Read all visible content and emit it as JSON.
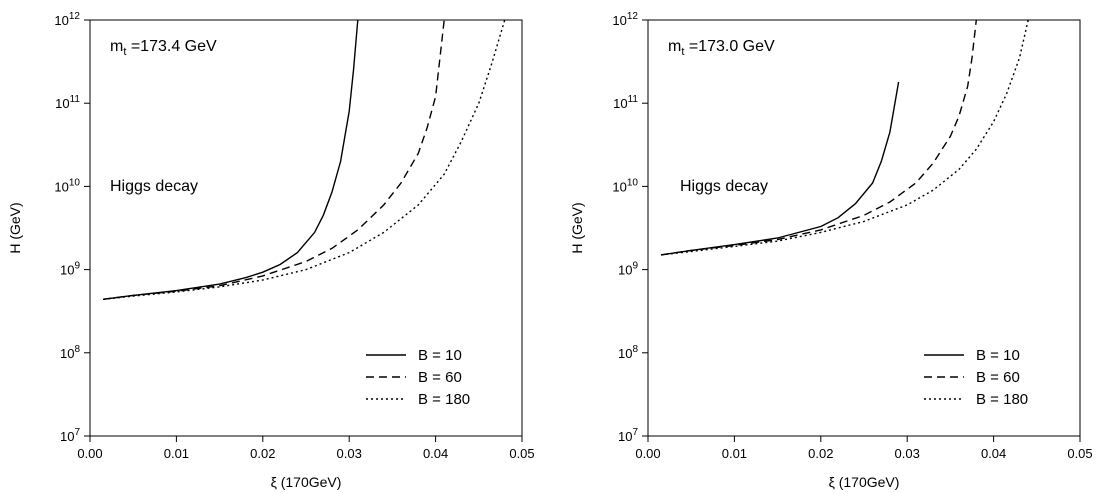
{
  "chart_data": [
    {
      "type": "line",
      "panel": "left",
      "xlabel": "ξ (170GeV)",
      "ylabel": "H (GeV)",
      "xlim": [
        0.0,
        0.05
      ],
      "ylim": [
        10000000,
        1000000000000
      ],
      "yscale": "log",
      "x_ticks": [
        "0.00",
        "0.01",
        "0.02",
        "0.03",
        "0.04",
        "0.05"
      ],
      "y_ticks": [
        {
          "base": "10",
          "exp": "7"
        },
        {
          "base": "10",
          "exp": "8"
        },
        {
          "base": "10",
          "exp": "9"
        },
        {
          "base": "10",
          "exp": "10"
        },
        {
          "base": "10",
          "exp": "11"
        },
        {
          "base": "10",
          "exp": "12"
        }
      ],
      "annotations": {
        "mass": {
          "prefix": "m",
          "sub": "t",
          "text": " =173.4 GeV"
        },
        "region": "Higgs decay"
      },
      "legend_position": "bottom-right",
      "grid": false,
      "series": [
        {
          "name": "B = 10",
          "dash": "solid",
          "x": [
            0.0015,
            0.005,
            0.01,
            0.015,
            0.018,
            0.02,
            0.022,
            0.024,
            0.026,
            0.027,
            0.028,
            0.029,
            0.0295,
            0.03,
            0.0305,
            0.031
          ],
          "y": [
            440000000.0,
            490000000.0,
            560000000.0,
            670000000.0,
            800000000.0,
            930000000.0,
            1150000000.0,
            1600000000.0,
            2800000000.0,
            4500000000.0,
            8500000000.0,
            20000000000.0,
            40000000000.0,
            80000000000.0,
            250000000000.0,
            1000000000000.0
          ]
        },
        {
          "name": "B = 60",
          "dash": "dashed",
          "x": [
            0.0015,
            0.005,
            0.01,
            0.015,
            0.02,
            0.025,
            0.028,
            0.031,
            0.034,
            0.036,
            0.038,
            0.039,
            0.04,
            0.041
          ],
          "y": [
            440000000.0,
            490000000.0,
            550000000.0,
            640000000.0,
            840000000.0,
            1250000000.0,
            1800000000.0,
            3000000000.0,
            6000000000.0,
            11000000000.0,
            25000000000.0,
            50000000000.0,
            120000000000.0,
            1000000000000.0
          ]
        },
        {
          "name": "B = 180",
          "dash": "dotted",
          "x": [
            0.0015,
            0.005,
            0.01,
            0.015,
            0.02,
            0.025,
            0.03,
            0.034,
            0.038,
            0.041,
            0.043,
            0.045,
            0.0465,
            0.048
          ],
          "y": [
            440000000.0,
            480000000.0,
            540000000.0,
            620000000.0,
            750000000.0,
            1000000000.0,
            1600000000.0,
            2800000000.0,
            6000000000.0,
            14000000000.0,
            35000000000.0,
            100000000000.0,
            300000000000.0,
            1000000000000.0
          ]
        }
      ]
    },
    {
      "type": "line",
      "panel": "right",
      "xlabel": "ξ (170GeV)",
      "ylabel": "H (GeV)",
      "xlim": [
        0.0,
        0.05
      ],
      "ylim": [
        10000000,
        1000000000000
      ],
      "yscale": "log",
      "x_ticks": [
        "0.00",
        "0.01",
        "0.02",
        "0.03",
        "0.04",
        "0.05"
      ],
      "y_ticks": [
        {
          "base": "10",
          "exp": "7"
        },
        {
          "base": "10",
          "exp": "8"
        },
        {
          "base": "10",
          "exp": "9"
        },
        {
          "base": "10",
          "exp": "10"
        },
        {
          "base": "10",
          "exp": "11"
        },
        {
          "base": "10",
          "exp": "12"
        }
      ],
      "annotations": {
        "mass": {
          "prefix": "m",
          "sub": "t",
          "text": " =173.0 GeV"
        },
        "region": "Higgs decay"
      },
      "legend_position": "bottom-right",
      "grid": false,
      "series": [
        {
          "name": "B = 10",
          "dash": "solid",
          "x": [
            0.0015,
            0.005,
            0.01,
            0.015,
            0.02,
            0.022,
            0.024,
            0.026,
            0.027,
            0.028,
            0.029
          ],
          "y": [
            1500000000.0,
            1700000000.0,
            2000000000.0,
            2400000000.0,
            3300000000.0,
            4200000000.0,
            6200000000.0,
            11000000000.0,
            20000000000.0,
            45000000000.0,
            180000000000.0
          ]
        },
        {
          "name": "B = 60",
          "dash": "dashed",
          "x": [
            0.0015,
            0.005,
            0.01,
            0.015,
            0.02,
            0.025,
            0.028,
            0.031,
            0.033,
            0.035,
            0.036,
            0.037,
            0.0375,
            0.038
          ],
          "y": [
            1500000000.0,
            1700000000.0,
            1950000000.0,
            2300000000.0,
            3000000000.0,
            4500000000.0,
            6500000000.0,
            11000000000.0,
            19000000000.0,
            40000000000.0,
            70000000000.0,
            160000000000.0,
            350000000000.0,
            1000000000000.0
          ]
        },
        {
          "name": "B = 180",
          "dash": "dotted",
          "x": [
            0.0015,
            0.005,
            0.01,
            0.015,
            0.02,
            0.025,
            0.03,
            0.033,
            0.036,
            0.038,
            0.04,
            0.0415,
            0.043,
            0.044
          ],
          "y": [
            1500000000.0,
            1650000000.0,
            1900000000.0,
            2200000000.0,
            2800000000.0,
            3800000000.0,
            6000000000.0,
            9000000000.0,
            16000000000.0,
            28000000000.0,
            60000000000.0,
            130000000000.0,
            350000000000.0,
            1000000000000.0
          ]
        }
      ]
    }
  ]
}
